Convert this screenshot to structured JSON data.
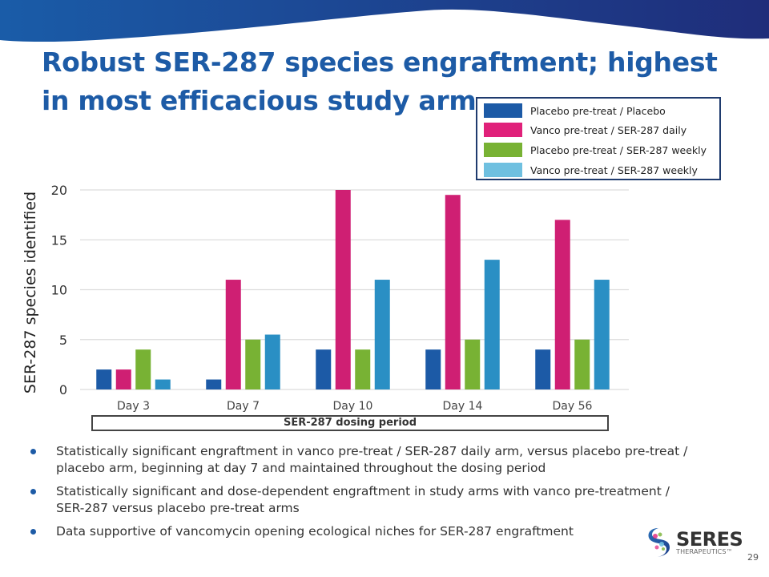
{
  "slide": {
    "title": "Robust SER-287 species engraftment; highest in most efficacious study arm",
    "page_number": "29",
    "dosing_period_label": "SER-287 dosing period",
    "bullets": [
      "Statistically significant engraftment in vanco pre-treat / SER-287 daily arm, versus placebo pre-treat / placebo arm, beginning at day 7 and maintained throughout the dosing period",
      "Statistically significant and dose-dependent engraftment in study arms with vanco pre-treatment / SER-287 versus placebo pre-treat arms",
      "Data supportive of vancomycin opening ecological niches for SER-287 engraftment"
    ],
    "logo": {
      "name": "SERES",
      "sub": "THERAPEUTICS™"
    },
    "colors": {
      "brand_blue": "#1d5ba6",
      "wave_start": "#1a5ca8",
      "wave_end": "#1f2d7a"
    }
  },
  "chart_data": {
    "type": "bar",
    "title": "",
    "xlabel": "",
    "ylabel": "SER-287 species identified",
    "ylim": [
      0,
      20
    ],
    "yticks": [
      0,
      5,
      10,
      15,
      20
    ],
    "grid": true,
    "legend_position": "top-right",
    "categories": [
      "Day 3",
      "Day 7",
      "Day 10",
      "Day 14",
      "Day 56"
    ],
    "series": [
      {
        "name": "Placebo pre-treat / Placebo",
        "color": "#1c5aa6",
        "legend_color": "#1c5aa6",
        "values": [
          2,
          1,
          4,
          4,
          4
        ]
      },
      {
        "name": "Vanco pre-treat / SER-287 daily",
        "color": "#cf1f73",
        "legend_color": "#e0217a",
        "values": [
          2,
          11,
          20,
          19.5,
          17
        ]
      },
      {
        "name": "Placebo pre-treat / SER-287 weekly",
        "color": "#78b234",
        "legend_color": "#78b234",
        "values": [
          4,
          5,
          4,
          5,
          5
        ]
      },
      {
        "name": "Vanco pre-treat / SER-287 weekly",
        "color": "#2a8fc4",
        "legend_color": "#6fc0e0",
        "values": [
          1,
          5.5,
          11,
          13,
          11
        ]
      }
    ]
  }
}
